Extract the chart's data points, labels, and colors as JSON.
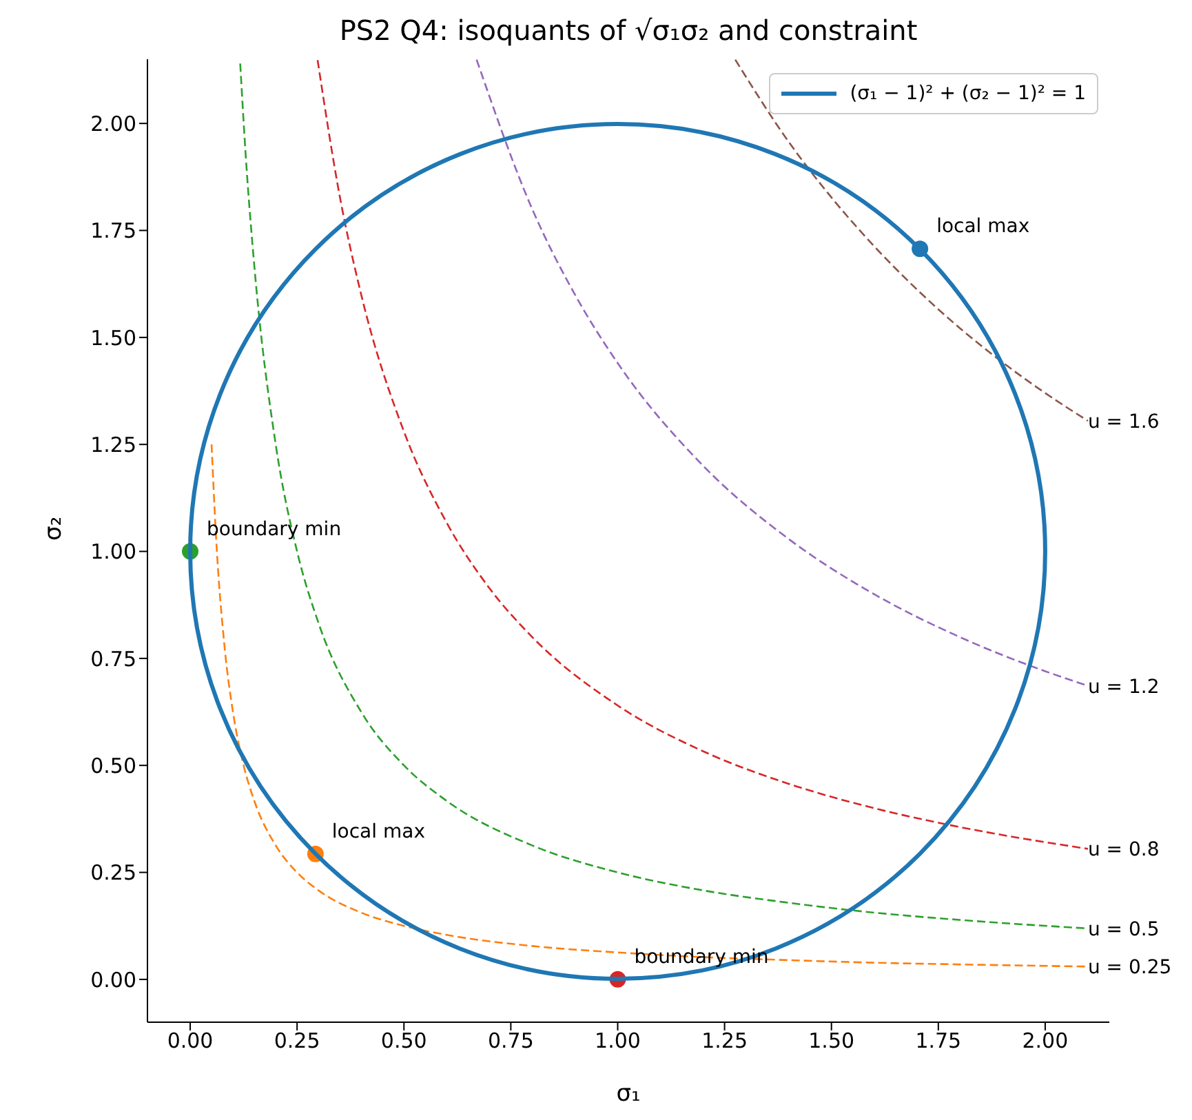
{
  "chart_data": {
    "type": "line",
    "title": "PS2 Q4: isoquants of √σ₁σ₂ and constraint",
    "xlabel": "σ₁",
    "ylabel": "σ₂",
    "xlim": [
      -0.1,
      2.15
    ],
    "ylim": [
      -0.1,
      2.15
    ],
    "xticks": [
      {
        "value": 0,
        "label": "0.00"
      },
      {
        "value": 0.25,
        "label": "0.25"
      },
      {
        "value": 0.5,
        "label": "0.50"
      },
      {
        "value": 0.75,
        "label": "0.75"
      },
      {
        "value": 1,
        "label": "1.00"
      },
      {
        "value": 1.25,
        "label": "1.25"
      },
      {
        "value": 1.5,
        "label": "1.50"
      },
      {
        "value": 1.75,
        "label": "1.75"
      },
      {
        "value": 2,
        "label": "2.00"
      }
    ],
    "yticks": [
      {
        "value": 0,
        "label": "0.00"
      },
      {
        "value": 0.25,
        "label": "0.25"
      },
      {
        "value": 0.5,
        "label": "0.50"
      },
      {
        "value": 0.75,
        "label": "0.75"
      },
      {
        "value": 1,
        "label": "1.00"
      },
      {
        "value": 1.25,
        "label": "1.25"
      },
      {
        "value": 1.5,
        "label": "1.50"
      },
      {
        "value": 1.75,
        "label": "1.75"
      },
      {
        "value": 2,
        "label": "2.00"
      }
    ],
    "marker": "none",
    "series": [
      {
        "color": "#ff7f0e",
        "line_style": "dashed",
        "x": [
          0.05,
          0.06,
          0.08,
          0.1,
          0.125,
          0.15,
          0.2,
          0.25,
          0.3,
          0.4,
          0.5,
          0.6,
          0.8,
          1.0,
          1.2,
          1.4,
          1.6,
          1.8,
          2.1
        ],
        "values": [
          1.25,
          1.042,
          0.781,
          0.625,
          0.5,
          0.417,
          0.313,
          0.25,
          0.208,
          0.156,
          0.125,
          0.104,
          0.078,
          0.063,
          0.052,
          0.045,
          0.039,
          0.035,
          0.03
        ]
      },
      {
        "color": "#2ca02c",
        "line_style": "dashed",
        "x": [
          0.117,
          0.13,
          0.15,
          0.2,
          0.25,
          0.3,
          0.4,
          0.5,
          0.6,
          0.8,
          1.0,
          1.2,
          1.4,
          1.6,
          1.8,
          2.1
        ],
        "values": [
          2.14,
          1.923,
          1.667,
          1.25,
          1.0,
          0.833,
          0.625,
          0.5,
          0.417,
          0.313,
          0.25,
          0.208,
          0.179,
          0.156,
          0.139,
          0.119
        ]
      },
      {
        "color": "#d62728",
        "line_style": "dashed",
        "x": [
          0.298,
          0.35,
          0.4,
          0.5,
          0.6,
          0.7,
          0.8,
          1.0,
          1.2,
          1.4,
          1.6,
          1.8,
          2.1
        ],
        "values": [
          2.148,
          1.829,
          1.6,
          1.28,
          1.067,
          0.914,
          0.8,
          0.64,
          0.533,
          0.457,
          0.4,
          0.356,
          0.305
        ]
      },
      {
        "color": "#9467bd",
        "line_style": "dashed",
        "x": [
          0.67,
          0.8,
          0.9,
          1.0,
          1.2,
          1.4,
          1.6,
          1.8,
          2.0,
          2.1
        ],
        "values": [
          2.149,
          1.8,
          1.6,
          1.44,
          1.2,
          1.029,
          0.9,
          0.8,
          0.72,
          0.686
        ]
      },
      {
        "color": "#8c564b",
        "line_style": "dashed",
        "x": [
          1.275,
          1.4,
          1.5,
          1.6,
          1.7,
          1.8,
          1.9,
          2.0,
          2.1
        ],
        "values": [
          2.149,
          1.957,
          1.827,
          1.713,
          1.612,
          1.522,
          1.442,
          1.37,
          1.305
        ]
      },
      {
        "type": "scatter",
        "marker": "circle",
        "color": "#2ca02c",
        "x": [
          0
        ],
        "values": [
          1
        ]
      },
      {
        "type": "scatter",
        "marker": "circle",
        "color": "#ff7f0e",
        "x": [
          0.293
        ],
        "values": [
          0.293
        ]
      },
      {
        "type": "scatter",
        "marker": "circle",
        "color": "#d62728",
        "x": [
          1
        ],
        "values": [
          0
        ]
      },
      {
        "type": "scatter",
        "marker": "circle",
        "color": "#1f77b4",
        "x": [
          1.707
        ],
        "values": [
          1.707
        ]
      }
    ],
    "annotations": [
      "(σ₁ − 1)² + (σ₂ − 1)² = 1",
      {
        "text": "boundary min",
        "x": 0,
        "y": 1
      },
      {
        "text": "local max",
        "x": 0.293,
        "y": 0.293
      },
      {
        "text": "boundary min",
        "x": 1,
        "y": 0
      },
      {
        "text": "local max",
        "x": 1.707,
        "y": 1.707
      },
      {
        "text": "u = 1.6",
        "x": 2.1,
        "y": 1.305
      },
      {
        "text": "u = 1.2",
        "x": 2.1,
        "y": 0.686
      },
      {
        "text": "u = 0.8",
        "x": 2.1,
        "y": 0.305
      },
      {
        "text": "u = 0.5",
        "x": 2.1,
        "y": 0.119
      },
      {
        "text": "u = 0.25",
        "x": 2.1,
        "y": 0.03
      }
    ]
  }
}
